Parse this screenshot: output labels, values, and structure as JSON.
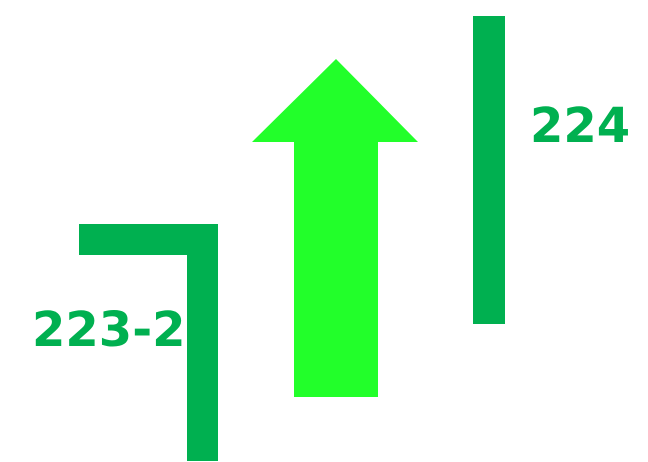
{
  "labels": {
    "left_section": "223-2",
    "right_section": "224"
  },
  "colors": {
    "line_green": "#00b050",
    "arrow_green": "#22ff2a",
    "text_green": "#00b050",
    "background": "#ffffff"
  },
  "arrow": {
    "direction": "up"
  }
}
